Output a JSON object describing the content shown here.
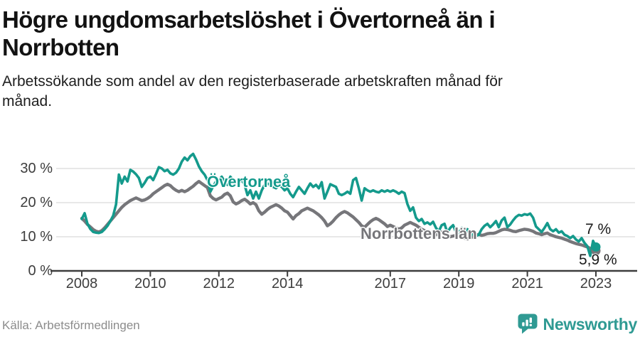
{
  "header": {
    "title_lines": [
      "Högre ungdomsarbetslöshet i Övertorneå än i",
      "Norrbotten"
    ],
    "subtitle_lines": [
      "Arbetssökande som andel av den registerbaserade arbetskraften månad för",
      "månad."
    ]
  },
  "footer": {
    "source": "Källa: Arbetsförmedlingen",
    "brand": "Newsworthy"
  },
  "colors": {
    "accent_teal": "#149a8c",
    "series_gray": "#76767a",
    "brand_teal": "#2f9a93",
    "grid": "#d9d9d9",
    "axis": "#3d3d3d"
  },
  "chart_data": {
    "type": "line",
    "title": "Högre ungdomsarbetslöshet i Övertorneå än i Norrbotten",
    "subtitle": "Arbetssökande som andel av den registerbaserade arbetskraften månad för månad.",
    "x_unit": "month",
    "x_start": "2008-01",
    "x_end": "2023-01",
    "ylim": [
      0,
      36
    ],
    "grid": "horizontal",
    "legend_position": "inline-labels",
    "x_ticks": [
      {
        "value": 2008,
        "label": "2008"
      },
      {
        "value": 2010,
        "label": "2010"
      },
      {
        "value": 2012,
        "label": "2012"
      },
      {
        "value": 2014,
        "label": "2014"
      },
      {
        "value": 2017,
        "label": "2017"
      },
      {
        "value": 2019,
        "label": "2019"
      },
      {
        "value": 2021,
        "label": "2021"
      },
      {
        "value": 2023,
        "label": "2023"
      }
    ],
    "y_ticks": [
      {
        "value": 0,
        "label": "0 %"
      },
      {
        "value": 10,
        "label": "10 %"
      },
      {
        "value": 20,
        "label": "20 %"
      },
      {
        "value": 30,
        "label": "30 %"
      }
    ],
    "series": [
      {
        "name": "Övertorneå",
        "color": "#149a8c",
        "end_label": "7 %",
        "end_value": 7.0,
        "values": [
          15.2,
          16.9,
          13.8,
          12.3,
          11.4,
          11.2,
          11.1,
          11.4,
          12.2,
          13.2,
          14.6,
          16.2,
          19.5,
          28.2,
          25.6,
          27.6,
          26.2,
          29.6,
          29.1,
          28.3,
          27.2,
          24.6,
          25.8,
          27.2,
          27.6,
          26.6,
          28.4,
          30.4,
          30.0,
          29.2,
          29.6,
          28.6,
          28.2,
          28.8,
          30.0,
          32.0,
          33.2,
          32.4,
          33.6,
          34.3,
          32.6,
          30.6,
          29.2,
          28.2,
          26.6,
          23.2,
          24.8,
          26.2,
          26.6,
          27.6,
          26.2,
          25.2,
          27.6,
          26.6,
          26.2,
          25.6,
          26.8,
          25.2,
          22.2,
          23.6,
          21.2,
          23.2,
          21.2,
          23.6,
          25.2,
          25.6,
          25.2,
          24.6,
          24.2,
          25.0,
          24.6,
          23.6,
          24.2,
          22.6,
          21.6,
          23.2,
          24.6,
          23.6,
          22.6,
          24.2,
          25.6,
          24.6,
          25.2,
          24.2,
          26.0,
          21.2,
          23.2,
          25.4,
          25.0,
          24.6,
          22.6,
          22.2,
          22.6,
          23.2,
          22.6,
          26.6,
          27.2,
          24.2,
          20.6,
          24.2,
          23.6,
          23.2,
          23.6,
          23.2,
          23.0,
          23.6,
          23.2,
          23.6,
          23.2,
          23.6,
          23.2,
          22.6,
          23.2,
          22.8,
          19.6,
          17.6,
          18.6,
          15.6,
          14.6,
          15.2,
          13.8,
          14.2,
          13.6,
          14.4,
          12.6,
          11.6,
          13.4,
          13.8,
          11.2,
          12.6,
          13.4,
          11.4,
          11.0,
          12.6,
          10.2,
          12.2,
          9.8,
          11.6,
          10.2,
          10.6,
          12.2,
          13.2,
          13.8,
          12.8,
          13.6,
          14.6,
          12.8,
          14.8,
          15.6,
          12.8,
          13.6,
          14.8,
          15.8,
          16.4,
          16.2,
          16.6,
          16.4,
          16.8,
          15.6,
          13.0,
          12.2,
          11.4,
          12.6,
          14.0,
          12.2,
          11.6,
          12.2,
          11.2,
          11.6,
          10.6,
          10.2,
          9.6,
          10.2,
          9.2,
          8.6,
          9.6,
          8.2,
          7.2,
          4.4,
          8.8,
          7.0
        ]
      },
      {
        "name": "Norrbottens län",
        "color": "#76767a",
        "end_label": "5,9 %",
        "end_value": 5.9,
        "values": [
          15.4,
          14.6,
          13.6,
          12.9,
          12.1,
          11.6,
          11.4,
          11.8,
          12.6,
          13.6,
          14.6,
          15.6,
          16.6,
          17.6,
          18.6,
          19.4,
          20.0,
          20.6,
          21.0,
          21.4,
          21.0,
          20.6,
          20.8,
          21.2,
          21.8,
          22.6,
          23.2,
          23.8,
          24.4,
          25.0,
          25.4,
          25.0,
          24.2,
          23.6,
          23.2,
          23.6,
          23.2,
          23.6,
          24.2,
          24.8,
          25.6,
          26.2,
          25.6,
          25.0,
          24.4,
          22.0,
          21.2,
          20.8,
          21.2,
          21.6,
          22.4,
          22.8,
          22.0,
          20.2,
          19.6,
          20.0,
          20.6,
          21.0,
          20.4,
          19.6,
          20.0,
          19.4,
          17.6,
          16.6,
          17.2,
          18.0,
          18.6,
          19.0,
          19.4,
          19.0,
          18.4,
          17.6,
          17.2,
          16.2,
          15.2,
          16.2,
          16.8,
          17.6,
          18.0,
          18.4,
          18.0,
          17.6,
          17.0,
          16.4,
          15.6,
          14.6,
          13.2,
          13.8,
          14.6,
          15.6,
          16.4,
          17.0,
          17.4,
          17.0,
          16.4,
          15.8,
          15.0,
          14.2,
          13.2,
          12.8,
          13.6,
          14.4,
          15.0,
          15.4,
          15.0,
          14.4,
          13.8,
          13.0,
          13.4,
          13.0,
          12.6,
          12.2,
          12.6,
          13.4,
          13.8,
          14.2,
          13.8,
          13.4,
          12.8,
          12.2,
          11.8,
          11.4,
          11.0,
          10.6,
          10.6,
          11.0,
          11.4,
          11.0,
          10.4,
          10.0,
          10.2,
          10.4,
          10.2,
          9.9,
          9.6,
          9.4,
          9.7,
          10.0,
          10.4,
          10.7,
          10.4,
          10.6,
          10.9,
          11.0,
          11.0,
          11.2,
          11.6,
          12.0,
          12.2,
          12.1,
          11.9,
          11.6,
          11.5,
          11.8,
          12.0,
          12.2,
          12.1,
          11.9,
          11.6,
          11.1,
          10.9,
          10.6,
          10.9,
          11.1,
          10.6,
          10.3,
          10.0,
          9.8,
          9.6,
          9.3,
          9.0,
          8.6,
          8.3,
          8.0,
          7.8,
          7.6,
          7.3,
          7.0,
          6.6,
          6.2,
          5.9
        ]
      }
    ]
  }
}
